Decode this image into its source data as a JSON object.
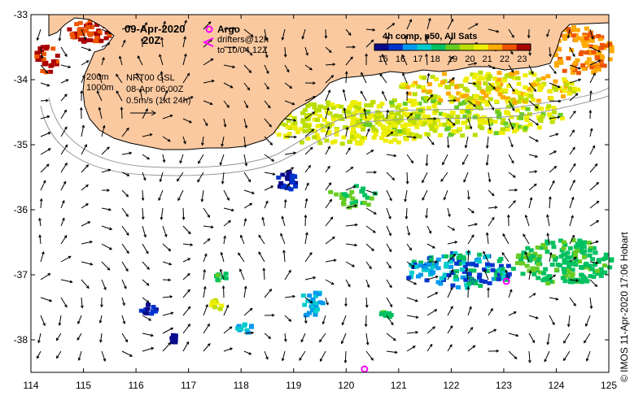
{
  "header": {
    "date": "09-Apr-2020",
    "time": "20Z"
  },
  "argo_legend": {
    "argo_label": "Argo",
    "drifters_label": "drifters@12h",
    "drifters_period": "to 10/04 12Z",
    "marker_color": "#ff00ff"
  },
  "depth_legend": {
    "contour_200": "200m",
    "contour_1000": "1000m"
  },
  "current_legend": {
    "source": "NRT00 GSL",
    "date": "08-Apr 06:00Z",
    "scale": "0.5m/s (1kt 24h)"
  },
  "colorbar": {
    "title": "4h comp, p50, All Sats",
    "ticks": [
      "15",
      "16",
      "17",
      "18",
      "19",
      "20",
      "21",
      "22",
      "23"
    ],
    "min": 14.5,
    "max": 23.5,
    "colors": [
      "#0a0a8c",
      "#0033cc",
      "#0099ee",
      "#00cccc",
      "#00c060",
      "#66cc22",
      "#bbdd00",
      "#eeee00",
      "#ffaa00",
      "#ee5500",
      "#aa0000"
    ]
  },
  "map": {
    "lon_ticks": [
      "114",
      "115",
      "116",
      "117",
      "118",
      "119",
      "120",
      "121",
      "122",
      "123",
      "124",
      "125"
    ],
    "lat_ticks": [
      "-33",
      "-34",
      "-35",
      "-36",
      "-37",
      "-38"
    ],
    "lon_range": [
      114,
      125
    ],
    "lat_range": [
      -38.5,
      -33
    ],
    "land_color": "#fac9a0",
    "ocean_color": "#ffffff",
    "argo_floats": [
      {
        "lon": 120.35,
        "lat": -38.45
      },
      {
        "lon": 123.05,
        "lat": -37.1
      }
    ]
  },
  "credit": "© IMOS 11-Apr-2020 17:06 Hobart"
}
